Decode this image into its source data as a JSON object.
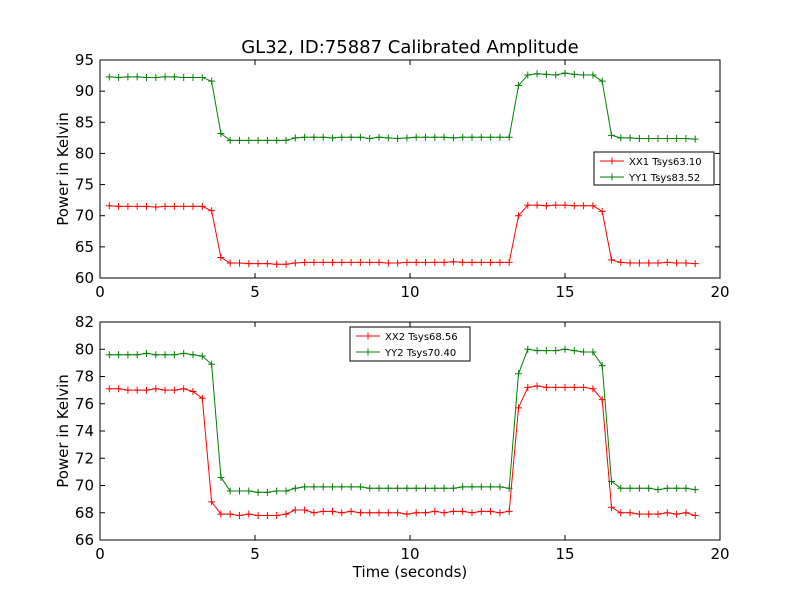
{
  "chart_data": [
    {
      "type": "line",
      "title": "GL32, ID:75887 Calibrated Amplitude",
      "xlabel": "",
      "ylabel": "Power in Kelvin",
      "xlim": [
        0,
        20
      ],
      "ylim": [
        60,
        95
      ],
      "xticks": [
        "0",
        "5",
        "10",
        "15",
        "20"
      ],
      "yticks": [
        "60",
        "65",
        "70",
        "75",
        "80",
        "85",
        "90",
        "95"
      ],
      "legend_position": "center-right",
      "x": [
        0.3,
        0.6,
        0.9,
        1.2,
        1.5,
        1.8,
        2.1,
        2.4,
        2.7,
        3.0,
        3.3,
        3.6,
        3.9,
        4.2,
        4.5,
        4.8,
        5.1,
        5.4,
        5.7,
        6.0,
        6.3,
        6.6,
        6.9,
        7.2,
        7.5,
        7.8,
        8.1,
        8.4,
        8.7,
        9.0,
        9.3,
        9.6,
        9.9,
        10.2,
        10.5,
        10.8,
        11.1,
        11.4,
        11.7,
        12.0,
        12.3,
        12.6,
        12.9,
        13.2,
        13.5,
        13.8,
        14.1,
        14.4,
        14.7,
        15.0,
        15.3,
        15.6,
        15.9,
        16.2,
        16.5,
        16.8,
        17.1,
        17.4,
        17.7,
        18.0,
        18.3,
        18.6,
        18.9,
        19.2
      ],
      "series": [
        {
          "name": "XX1 Tsys63.10",
          "color": "#ff0000",
          "values": [
            71.6,
            71.5,
            71.5,
            71.5,
            71.5,
            71.4,
            71.5,
            71.5,
            71.5,
            71.5,
            71.5,
            70.8,
            63.3,
            62.4,
            62.4,
            62.3,
            62.3,
            62.3,
            62.2,
            62.2,
            62.4,
            62.5,
            62.5,
            62.5,
            62.5,
            62.5,
            62.5,
            62.5,
            62.5,
            62.5,
            62.4,
            62.4,
            62.5,
            62.5,
            62.5,
            62.5,
            62.5,
            62.6,
            62.5,
            62.5,
            62.5,
            62.5,
            62.5,
            62.5,
            70.0,
            71.7,
            71.7,
            71.6,
            71.7,
            71.7,
            71.6,
            71.6,
            71.6,
            70.7,
            62.9,
            62.5,
            62.4,
            62.4,
            62.4,
            62.4,
            62.5,
            62.4,
            62.4,
            62.3
          ]
        },
        {
          "name": "YY1 Tsys83.52",
          "color": "#008000",
          "values": [
            92.3,
            92.2,
            92.3,
            92.3,
            92.2,
            92.2,
            92.3,
            92.3,
            92.2,
            92.2,
            92.2,
            91.6,
            83.2,
            82.1,
            82.1,
            82.1,
            82.1,
            82.1,
            82.1,
            82.1,
            82.5,
            82.6,
            82.6,
            82.6,
            82.5,
            82.6,
            82.6,
            82.6,
            82.4,
            82.6,
            82.5,
            82.4,
            82.5,
            82.6,
            82.6,
            82.6,
            82.6,
            82.5,
            82.6,
            82.6,
            82.6,
            82.6,
            82.6,
            82.6,
            90.9,
            92.6,
            92.8,
            92.7,
            92.6,
            92.9,
            92.7,
            92.6,
            92.6,
            91.6,
            82.9,
            82.5,
            82.5,
            82.4,
            82.4,
            82.4,
            82.4,
            82.4,
            82.4,
            82.3
          ]
        }
      ]
    },
    {
      "type": "line",
      "title": "",
      "xlabel": "Time (seconds)",
      "ylabel": "Power in Kelvin",
      "xlim": [
        0,
        20
      ],
      "ylim": [
        66,
        82
      ],
      "xticks": [
        "0",
        "5",
        "10",
        "15",
        "20"
      ],
      "yticks": [
        "66",
        "68",
        "70",
        "72",
        "74",
        "76",
        "78",
        "80",
        "82"
      ],
      "legend_position": "top-center",
      "x": [
        0.3,
        0.6,
        0.9,
        1.2,
        1.5,
        1.8,
        2.1,
        2.4,
        2.7,
        3.0,
        3.3,
        3.6,
        3.9,
        4.2,
        4.5,
        4.8,
        5.1,
        5.4,
        5.7,
        6.0,
        6.3,
        6.6,
        6.9,
        7.2,
        7.5,
        7.8,
        8.1,
        8.4,
        8.7,
        9.0,
        9.3,
        9.6,
        9.9,
        10.2,
        10.5,
        10.8,
        11.1,
        11.4,
        11.7,
        12.0,
        12.3,
        12.6,
        12.9,
        13.2,
        13.5,
        13.8,
        14.1,
        14.4,
        14.7,
        15.0,
        15.3,
        15.6,
        15.9,
        16.2,
        16.5,
        16.8,
        17.1,
        17.4,
        17.7,
        18.0,
        18.3,
        18.6,
        18.9,
        19.2
      ],
      "series": [
        {
          "name": "XX2 Tsys68.56",
          "color": "#ff0000",
          "values": [
            77.1,
            77.1,
            77.0,
            77.0,
            77.0,
            77.1,
            77.0,
            77.0,
            77.1,
            76.9,
            76.4,
            68.8,
            67.9,
            67.9,
            67.8,
            67.9,
            67.8,
            67.8,
            67.8,
            67.9,
            68.2,
            68.2,
            68.0,
            68.1,
            68.1,
            68.0,
            68.1,
            68.0,
            68.0,
            68.0,
            68.0,
            68.0,
            67.9,
            68.0,
            68.0,
            68.1,
            68.0,
            68.1,
            68.1,
            68.0,
            68.1,
            68.1,
            68.0,
            68.1,
            75.7,
            77.2,
            77.3,
            77.2,
            77.2,
            77.2,
            77.2,
            77.2,
            77.1,
            76.3,
            68.4,
            68.0,
            68.0,
            67.9,
            67.9,
            67.9,
            68.0,
            67.9,
            68.0,
            67.8
          ]
        },
        {
          "name": "YY2 Tsys70.40",
          "color": "#008000",
          "values": [
            79.6,
            79.6,
            79.6,
            79.6,
            79.7,
            79.6,
            79.6,
            79.6,
            79.7,
            79.6,
            79.5,
            78.9,
            70.6,
            69.6,
            69.6,
            69.6,
            69.5,
            69.5,
            69.6,
            69.6,
            69.8,
            69.9,
            69.9,
            69.9,
            69.9,
            69.9,
            69.9,
            69.9,
            69.8,
            69.8,
            69.8,
            69.8,
            69.8,
            69.8,
            69.8,
            69.8,
            69.8,
            69.8,
            69.9,
            69.9,
            69.9,
            69.9,
            69.9,
            69.8,
            78.2,
            80.0,
            79.9,
            79.9,
            79.9,
            80.0,
            79.9,
            79.8,
            79.8,
            78.8,
            70.3,
            69.8,
            69.8,
            69.8,
            69.8,
            69.7,
            69.8,
            69.8,
            69.8,
            69.7
          ]
        }
      ]
    }
  ]
}
